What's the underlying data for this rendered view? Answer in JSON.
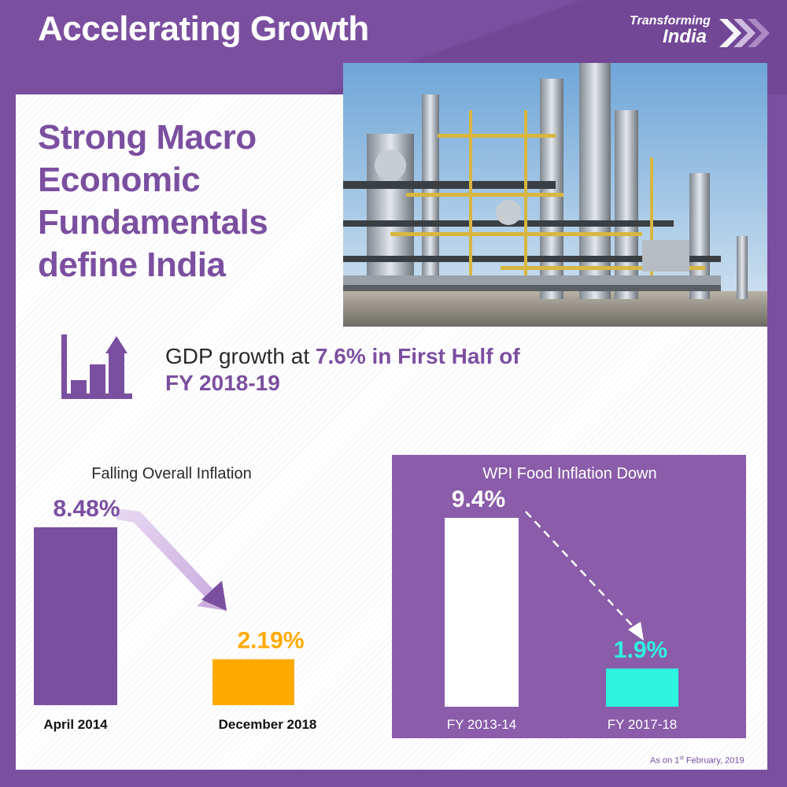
{
  "header": {
    "title": "Accelerating Growth",
    "brand_line1": "Transforming",
    "brand_line2": "India"
  },
  "headline": [
    "Strong Macro",
    "Economic",
    "Fundamentals",
    "define India"
  ],
  "gdp": {
    "prefix": "GDP growth at ",
    "highlight": "7.6% in First Half of",
    "line2": "FY 2018-19"
  },
  "chart_data": [
    {
      "type": "bar",
      "title": "Falling Overall Inflation",
      "categories": [
        "April 2014",
        "December 2018"
      ],
      "values": [
        8.48,
        2.19
      ],
      "value_labels": [
        "8.48%",
        "2.19%"
      ],
      "colors": [
        "#7b4fa0",
        "#ffaa00"
      ],
      "ylim": [
        0,
        8.48
      ],
      "grid": false
    },
    {
      "type": "bar",
      "title": "WPI Food Inflation Down",
      "categories": [
        "FY 2013-14",
        "FY 2017-18"
      ],
      "values": [
        9.4,
        1.9
      ],
      "value_labels": [
        "9.4%",
        "1.9%"
      ],
      "colors": [
        "#ffffff",
        "#2ef5e0"
      ],
      "ylim": [
        0,
        9.4
      ],
      "grid": false
    }
  ],
  "footnote": {
    "prefix": "As on 1",
    "sup": "st",
    "suffix": " February, 2019"
  },
  "colors": {
    "purple": "#7b4fa0",
    "light_purple": "#8a5ca9",
    "amber": "#ffaa00",
    "cyan": "#2ef5e0"
  }
}
